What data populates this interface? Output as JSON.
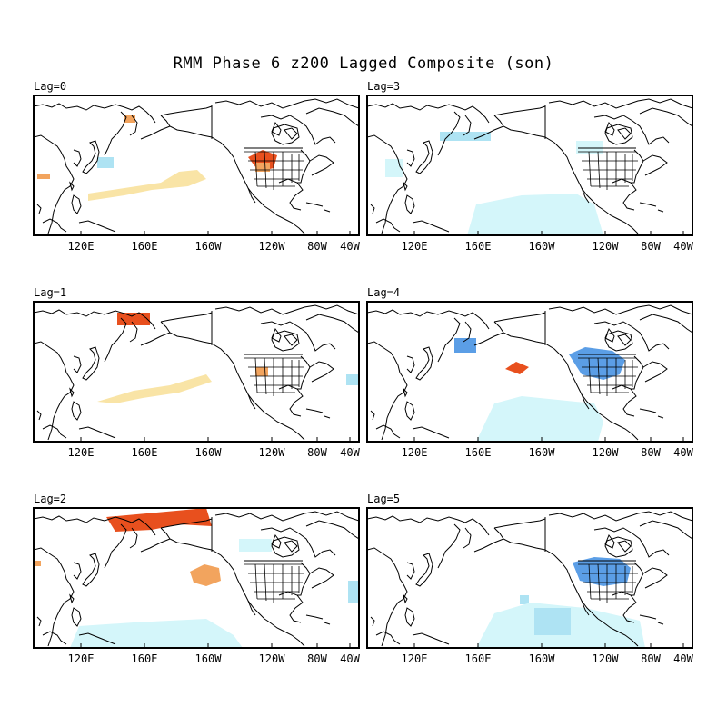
{
  "title": "RMM Phase 6 z200 Lagged Composite (son)",
  "longitude_ticks": [
    "120E",
    "160E",
    "160W",
    "120W",
    "80W",
    "40W"
  ],
  "colors": {
    "warm_light": "#f9e4a6",
    "warm_mid": "#f2a45e",
    "warm_strong": "#e8501e",
    "cool_light": "#d4f6fa",
    "cool_mid": "#aee3f3",
    "cool_strong": "#5b9ee6",
    "coast": "#000000"
  },
  "panels": [
    {
      "label": "Lag=0"
    },
    {
      "label": "Lag=3"
    },
    {
      "label": "Lag=1"
    },
    {
      "label": "Lag=4"
    },
    {
      "label": "Lag=2"
    },
    {
      "label": "Lag=5"
    }
  ]
}
